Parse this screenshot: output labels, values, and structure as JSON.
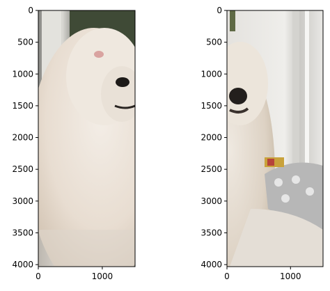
{
  "chart_data": [
    {
      "type": "image",
      "title": "",
      "xlabel": "",
      "ylabel": "",
      "xlim": [
        0,
        1512
      ],
      "ylim": [
        4032,
        0
      ],
      "x_ticks": [
        0,
        1000
      ],
      "y_ticks": [
        0,
        500,
        1000,
        1500,
        2000,
        2500,
        3000,
        3500,
        4000
      ],
      "image_content": "left half of a fluffy white Pomeranian dog photo"
    },
    {
      "type": "image",
      "title": "",
      "xlabel": "",
      "ylabel": "",
      "xlim": [
        0,
        1512
      ],
      "ylim": [
        4032,
        0
      ],
      "x_ticks": [
        0,
        1000
      ],
      "y_ticks": [
        0,
        500,
        1000,
        1500,
        2000,
        2500,
        3000,
        3500,
        4000
      ],
      "image_content": "right half of a fluffy white Pomeranian dog photo"
    }
  ]
}
